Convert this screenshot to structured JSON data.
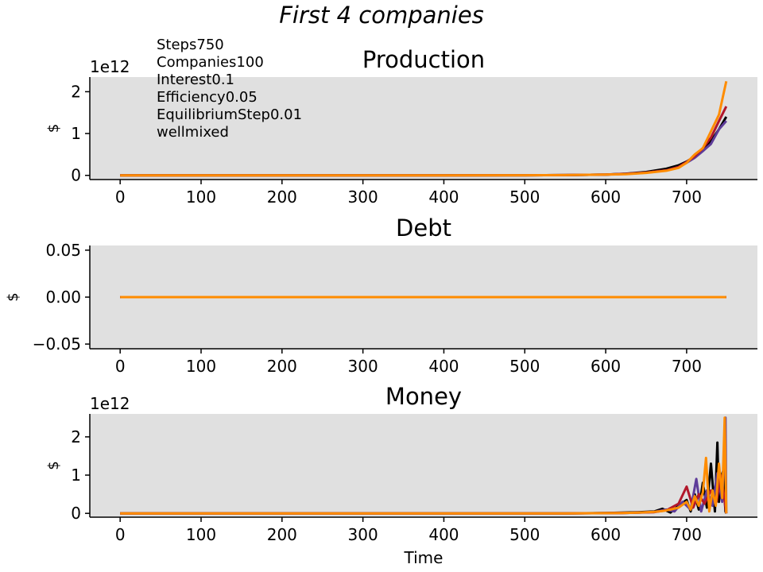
{
  "suptitle": "First 4 companies",
  "annotation": {
    "lines": [
      "Steps750",
      "Companies100",
      "Interest0.1",
      "Efficiency0.05",
      "EquilibriumStep0.01",
      "wellmixed"
    ]
  },
  "colors": {
    "background": "#e0e0e0",
    "series": [
      "#000000",
      "#5e3c99",
      "#b2182b",
      "#ff8c00"
    ]
  },
  "chart_data": [
    {
      "type": "line",
      "title": "Production",
      "ylabel": "$",
      "xlabel": "",
      "offset_text": "1e12",
      "xlim": [
        -37.5,
        787.5
      ],
      "ylim": [
        -0.1,
        2.35
      ],
      "xticks": [
        0,
        100,
        200,
        300,
        400,
        500,
        600,
        700
      ],
      "yticks": [
        0,
        1,
        2
      ],
      "ytick_labels": [
        "0",
        "1",
        "2"
      ],
      "grid": false,
      "series": [
        {
          "color": "#000000",
          "x": [
            0,
            100,
            200,
            300,
            400,
            500,
            550,
            600,
            625,
            650,
            675,
            690,
            700,
            710,
            720,
            730,
            740,
            749
          ],
          "y": [
            0,
            0,
            0,
            0,
            0,
            0.002,
            0.006,
            0.02,
            0.04,
            0.08,
            0.16,
            0.24,
            0.33,
            0.45,
            0.62,
            0.82,
            1.1,
            1.4
          ]
        },
        {
          "color": "#5e3c99",
          "x": [
            0,
            100,
            200,
            300,
            400,
            500,
            550,
            600,
            625,
            650,
            675,
            690,
            700,
            710,
            720,
            730,
            740,
            749
          ],
          "y": [
            0,
            0,
            0,
            0,
            0,
            0.002,
            0.006,
            0.02,
            0.035,
            0.065,
            0.12,
            0.2,
            0.3,
            0.42,
            0.58,
            0.75,
            1.1,
            1.3
          ]
        },
        {
          "color": "#b2182b",
          "x": [
            0,
            100,
            200,
            300,
            400,
            500,
            550,
            600,
            625,
            650,
            675,
            690,
            700,
            710,
            720,
            730,
            740,
            749
          ],
          "y": [
            0,
            0,
            0,
            0,
            0,
            0.002,
            0.006,
            0.02,
            0.035,
            0.065,
            0.12,
            0.2,
            0.32,
            0.46,
            0.65,
            0.9,
            1.3,
            1.65
          ]
        },
        {
          "color": "#ff8c00",
          "x": [
            0,
            100,
            200,
            300,
            400,
            500,
            550,
            600,
            625,
            650,
            675,
            690,
            700,
            710,
            720,
            730,
            740,
            749
          ],
          "y": [
            0,
            0,
            0,
            0,
            0,
            0.002,
            0.006,
            0.02,
            0.03,
            0.06,
            0.11,
            0.18,
            0.3,
            0.5,
            0.65,
            1.05,
            1.45,
            2.25
          ]
        }
      ]
    },
    {
      "type": "line",
      "title": "Debt",
      "ylabel": "$",
      "xlabel": "",
      "offset_text": "",
      "xlim": [
        -37.5,
        787.5
      ],
      "ylim": [
        -0.055,
        0.055
      ],
      "xticks": [
        0,
        100,
        200,
        300,
        400,
        500,
        600,
        700
      ],
      "yticks": [
        -0.05,
        0,
        0.05
      ],
      "ytick_labels": [
        "−0.05",
        "0.00",
        "0.05"
      ],
      "grid": false,
      "series": [
        {
          "color": "#000000",
          "x": [
            0,
            749
          ],
          "y": [
            0,
            0
          ]
        },
        {
          "color": "#5e3c99",
          "x": [
            0,
            749
          ],
          "y": [
            0,
            0
          ]
        },
        {
          "color": "#b2182b",
          "x": [
            0,
            749
          ],
          "y": [
            0,
            0
          ]
        },
        {
          "color": "#ff8c00",
          "x": [
            0,
            749
          ],
          "y": [
            0,
            0
          ]
        }
      ]
    },
    {
      "type": "line",
      "title": "Money",
      "ylabel": "$",
      "xlabel": "Time",
      "offset_text": "1e12",
      "xlim": [
        -37.5,
        787.5
      ],
      "ylim": [
        -0.1,
        2.6
      ],
      "xticks": [
        0,
        100,
        200,
        300,
        400,
        500,
        600,
        700
      ],
      "yticks": [
        0,
        1,
        2
      ],
      "ytick_labels": [
        "0",
        "1",
        "2"
      ],
      "grid": false,
      "series": [
        {
          "color": "#000000",
          "x": [
            0,
            550,
            600,
            620,
            640,
            660,
            670,
            680,
            690,
            700,
            705,
            710,
            715,
            720,
            725,
            730,
            735,
            738,
            740,
            742,
            745,
            748,
            749
          ],
          "y": [
            0,
            0,
            0.01,
            0.02,
            0.03,
            0.05,
            0.12,
            0.02,
            0.2,
            0.35,
            0.05,
            0.5,
            0.1,
            0.8,
            0.15,
            1.3,
            0.05,
            1.85,
            0.3,
            0.9,
            1.1,
            0.05,
            0
          ]
        },
        {
          "color": "#5e3c99",
          "x": [
            0,
            550,
            600,
            620,
            640,
            660,
            675,
            685,
            695,
            705,
            712,
            718,
            725,
            732,
            738,
            744,
            748,
            749
          ],
          "y": [
            0,
            0,
            0.005,
            0.01,
            0.02,
            0.04,
            0.1,
            0.05,
            0.3,
            0.1,
            0.9,
            0.05,
            0.6,
            0.2,
            1.05,
            0.3,
            2.5,
            0
          ]
        },
        {
          "color": "#b2182b",
          "x": [
            0,
            550,
            600,
            620,
            640,
            660,
            675,
            690,
            700,
            708,
            715,
            722,
            730,
            737,
            742,
            746,
            749
          ],
          "y": [
            0,
            0,
            0.005,
            0.01,
            0.02,
            0.03,
            0.08,
            0.25,
            0.7,
            0.15,
            0.5,
            0.25,
            0.6,
            0.3,
            1.0,
            0.5,
            0
          ]
        },
        {
          "color": "#ff8c00",
          "x": [
            0,
            550,
            600,
            620,
            640,
            660,
            670,
            680,
            690,
            700,
            705,
            710,
            715,
            720,
            724,
            728,
            732,
            736,
            740,
            744,
            747,
            749
          ],
          "y": [
            0,
            0,
            0.005,
            0.01,
            0.02,
            0.04,
            0.06,
            0.1,
            0.15,
            0.3,
            0.1,
            0.45,
            0.2,
            0.55,
            1.45,
            0.05,
            0.6,
            0.2,
            1.3,
            0.4,
            2.5,
            0
          ]
        }
      ]
    }
  ]
}
